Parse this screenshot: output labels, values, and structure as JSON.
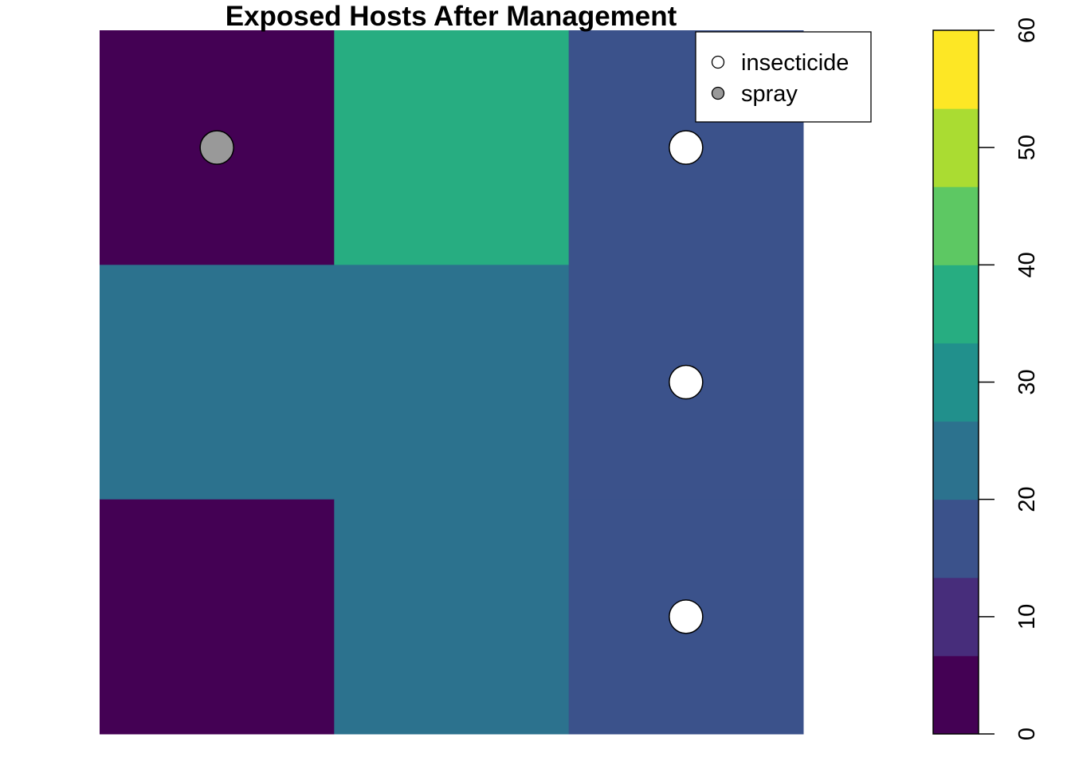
{
  "chart_data": {
    "type": "heatmap",
    "title": "Exposed Hosts After Management",
    "xlabel": "",
    "ylabel": "",
    "grid": {
      "rows": 3,
      "cols": 3,
      "values": [
        [
          0,
          37,
          17
        ],
        [
          24,
          24,
          17
        ],
        [
          0,
          24,
          17
        ]
      ]
    },
    "color_scale": {
      "range": [
        0,
        60
      ],
      "ticks": [
        0,
        10,
        20,
        30,
        40,
        50,
        60
      ],
      "tick_labels": [
        "0",
        "10",
        "20",
        "30",
        "40",
        "50",
        "60"
      ],
      "colors": [
        "#440154",
        "#472D7B",
        "#3B528B",
        "#2C728E",
        "#21908C",
        "#27AD81",
        "#5DC863",
        "#AADC32",
        "#FDE725"
      ]
    },
    "points": [
      {
        "series": "spray",
        "row": 0,
        "col": 0
      },
      {
        "series": "insecticide",
        "row": 0,
        "col": 2
      },
      {
        "series": "insecticide",
        "row": 1,
        "col": 2
      },
      {
        "series": "insecticide",
        "row": 2,
        "col": 2
      }
    ],
    "legend": {
      "position": "top-right",
      "entries": [
        {
          "label": "insecticide",
          "fill": "#FFFFFF"
        },
        {
          "label": "spray",
          "fill": "#999999"
        }
      ]
    }
  }
}
